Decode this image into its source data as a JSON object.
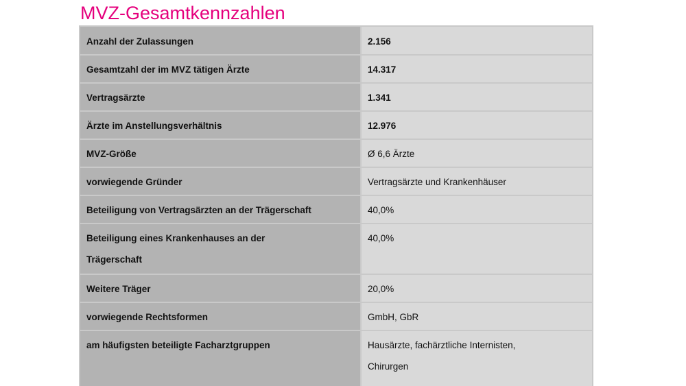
{
  "title": "MVZ-Gesamtkennzahlen",
  "rows": [
    {
      "label": "Anzahl der Zulassungen",
      "value": "2.156"
    },
    {
      "label": "Gesamtzahl der im MVZ tätigen Ärzte",
      "value": "14.317"
    },
    {
      "label": "Vertragsärzte",
      "value": "1.341"
    },
    {
      "label": "Ärzte im Anstellungsverhältnis",
      "value": "12.976"
    },
    {
      "label": "MVZ-Größe",
      "value": "Ø 6,6 Ärzte"
    },
    {
      "label": "vorwiegende Gründer",
      "value": "Vertragsärzte und Krankenhäuser"
    },
    {
      "label": "Beteiligung von Vertragsärzten an der Trägerschaft",
      "value": "40,0%"
    },
    {
      "label_line1": "Beteiligung eines Krankenhauses an der",
      "label_line2": "Trägerschaft",
      "value": "40,0%"
    },
    {
      "label": "Weitere Träger",
      "value": "20,0%"
    },
    {
      "label": "vorwiegende Rechtsformen",
      "value": "GmbH, GbR"
    },
    {
      "label": "am häufigsten beteiligte Facharztgruppen",
      "value_line1": "Hausärzte, fachärztliche Internisten,",
      "value_line2": "Chirurgen"
    }
  ]
}
